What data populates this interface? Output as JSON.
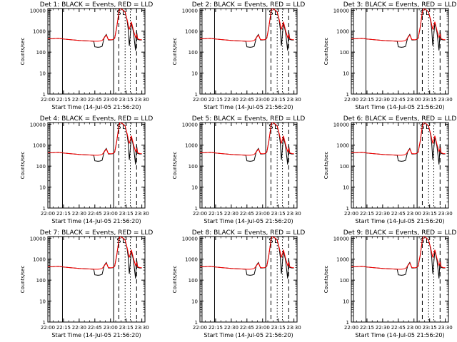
{
  "panels": [
    {
      "title": "Det 1: BLACK = Events, RED = LLD",
      "ylabel": "Counts/sec",
      "xlabel": "Start Time (14-Jul-05 21:56:20)"
    },
    {
      "title": "Det 2: BLACK = Events, RED = LLD",
      "ylabel": "Counts/sec",
      "xlabel": "Start Time (14-Jul-05 21:56:20)"
    },
    {
      "title": "Det 3: BLACK = Events, RED = LLD",
      "ylabel": "Counts/sec",
      "xlabel": "Start Time (14-Jul-05 21:56:20)"
    },
    {
      "title": "Det 4: BLACK = Events, RED = LLD",
      "ylabel": "Counts/sec",
      "xlabel": "Start Time (14-Jul-05 21:56:20)"
    },
    {
      "title": "Det 5: BLACK = Events, RED = LLD",
      "ylabel": "Counts/sec",
      "xlabel": "Start Time (14-Jul-05 21:56:20)"
    },
    {
      "title": "Det 6: BLACK = Events, RED = LLD",
      "ylabel": "Counts/sec",
      "xlabel": "Start Time (14-Jul-05 21:56:20)"
    },
    {
      "title": "Det 7: BLACK = Events, RED = LLD",
      "ylabel": "Counts/sec",
      "xlabel": "Start Time (14-Jul-05 21:56:20)"
    },
    {
      "title": "Det 8: BLACK = Events, RED = LLD",
      "ylabel": "Counts/sec",
      "xlabel": "Start Time (14-Jul-05 21:56:20)"
    },
    {
      "title": "Det 9: BLACK = Events, RED = LLD",
      "ylabel": "Counts/sec",
      "xlabel": "Start Time (14-Jul-05 21:56:20)"
    }
  ],
  "chart_data": {
    "type": "line",
    "layout": "3x3 grid",
    "x_ticks": [
      "22:00",
      "22:15",
      "22:30",
      "22:45",
      "23:00",
      "23:15",
      "23:30"
    ],
    "x_tick_minutes": [
      0,
      15,
      30,
      45,
      60,
      75,
      90
    ],
    "xlim_minutes": [
      0,
      93
    ],
    "y_scale": "log",
    "ylim": [
      1,
      12000
    ],
    "y_ticks": [
      1,
      10,
      100,
      1000,
      10000
    ],
    "y_tick_labels": [
      "1",
      "10",
      "100",
      "1000",
      "10000"
    ],
    "marker_labels": [
      "S",
      "L"
    ],
    "series": [
      {
        "name": "Events",
        "color": "#000000"
      },
      {
        "name": "LLD",
        "color": "#ff0000"
      }
    ],
    "series_x_minutes": [
      0,
      5,
      10,
      15,
      20,
      25,
      30,
      35,
      40,
      44,
      45,
      48,
      50,
      52,
      54,
      56,
      58,
      60,
      62,
      64,
      66,
      68,
      69,
      70,
      72,
      74,
      76,
      77,
      78,
      80,
      82,
      84,
      85,
      86,
      88,
      90
    ],
    "events_values": [
      430,
      440,
      460,
      420,
      400,
      380,
      360,
      350,
      340,
      330,
      180,
      170,
      175,
      190,
      500,
      700,
      380,
      380,
      390,
      460,
      1500,
      7500,
      12000,
      12000,
      10000,
      8500,
      3000,
      1200,
      200,
      2500,
      900,
      120,
      1000,
      400,
      380,
      380
    ],
    "lld_values": [
      430,
      440,
      460,
      420,
      400,
      380,
      360,
      350,
      340,
      330,
      330,
      330,
      340,
      360,
      480,
      650,
      400,
      390,
      395,
      470,
      1600,
      8000,
      12000,
      12000,
      10000,
      8000,
      3500,
      2000,
      1200,
      2800,
      1100,
      500,
      700,
      430,
      400,
      390
    ],
    "vertical_lines": [
      {
        "x_minutes": 2,
        "style": "solid"
      },
      {
        "x_minutes": 14,
        "style": "solid"
      },
      {
        "x_minutes": 63,
        "style": "solid"
      },
      {
        "x_minutes": 68,
        "style": "dashed"
      },
      {
        "x_minutes": 74,
        "style": "dotted"
      },
      {
        "x_minutes": 79,
        "style": "dotted"
      },
      {
        "x_minutes": 85,
        "style": "dashed"
      }
    ],
    "marker_x_minutes": [
      68,
      73
    ],
    "grid": false
  }
}
